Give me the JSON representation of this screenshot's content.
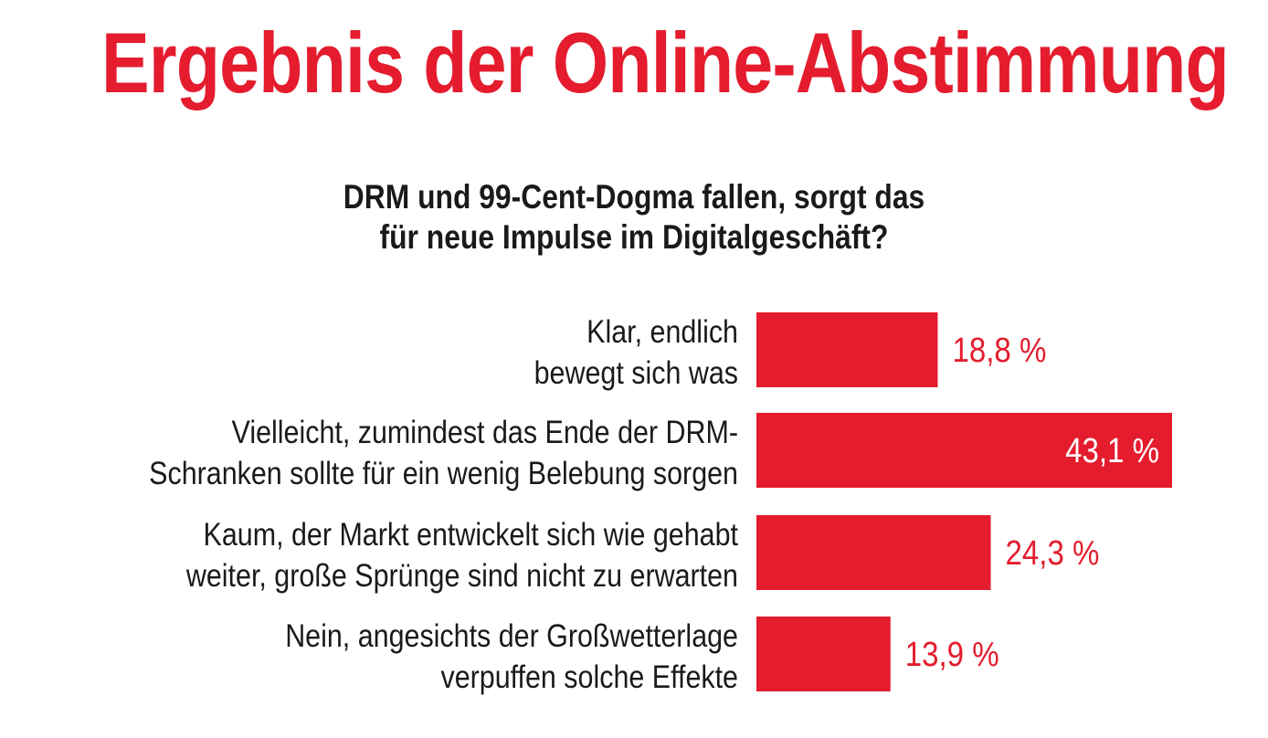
{
  "chart_data": {
    "type": "bar",
    "orientation": "horizontal",
    "title": "Ergebnis der Online-Abstimmung",
    "subtitle_lines": [
      "DRM und 99-Cent-Dogma fallen, sorgt das",
      "für neue Impulse im Digitalgeschäft?"
    ],
    "categories": [
      [
        "Klar, endlich",
        "bewegt sich was"
      ],
      [
        "Vielleicht, zumindest das Ende der DRM-",
        "Schranken sollte für ein wenig Belebung sorgen"
      ],
      [
        "Kaum, der Markt entwickelt sich wie gehabt",
        "weiter, große Sprünge sind nicht zu erwarten"
      ],
      [
        "Nein, angesichts der Großwetterlage",
        "verpuffen solche Effekte"
      ]
    ],
    "values": [
      18.8,
      43.1,
      24.3,
      13.9
    ],
    "value_labels": [
      "18,8 %",
      "43,1 %",
      "24,3 %",
      "13,9 %"
    ],
    "unit": "%",
    "xlim": [
      0,
      43.1
    ],
    "grid": false,
    "legend": "none",
    "colors": {
      "bar": "#e41c2e",
      "title": "#e41c2e",
      "text": "#1a1a1a",
      "label_inside": "#ffffff"
    }
  }
}
